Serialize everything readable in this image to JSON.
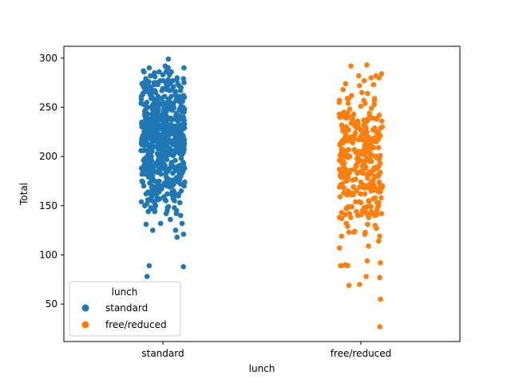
{
  "chart_data": {
    "type": "scatter",
    "subtype": "strip",
    "title": "",
    "xlabel": "lunch",
    "ylabel": "Total",
    "categories": [
      "standard",
      "free/reduced"
    ],
    "ylim": [
      12,
      312
    ],
    "yticks": [
      50,
      100,
      150,
      200,
      250,
      300
    ],
    "grid": false,
    "legend": {
      "title": "lunch",
      "placement": "lower-left",
      "entries": [
        "standard",
        "free/reduced"
      ]
    },
    "series": [
      {
        "name": "standard",
        "color": "#1f77b4",
        "count": 645,
        "distribution": {
          "min": 78,
          "max": 300,
          "mean": 218,
          "sd": 40
        },
        "outliers": [
          89,
          88,
          78,
          118,
          121
        ]
      },
      {
        "name": "free/reduced",
        "color": "#ff7f0e",
        "count": 355,
        "distribution": {
          "min": 27,
          "max": 293,
          "mean": 196,
          "sd": 42
        },
        "outliers": [
          293,
          292,
          280,
          92,
          90,
          89,
          78,
          70,
          69,
          55,
          27
        ]
      }
    ]
  }
}
